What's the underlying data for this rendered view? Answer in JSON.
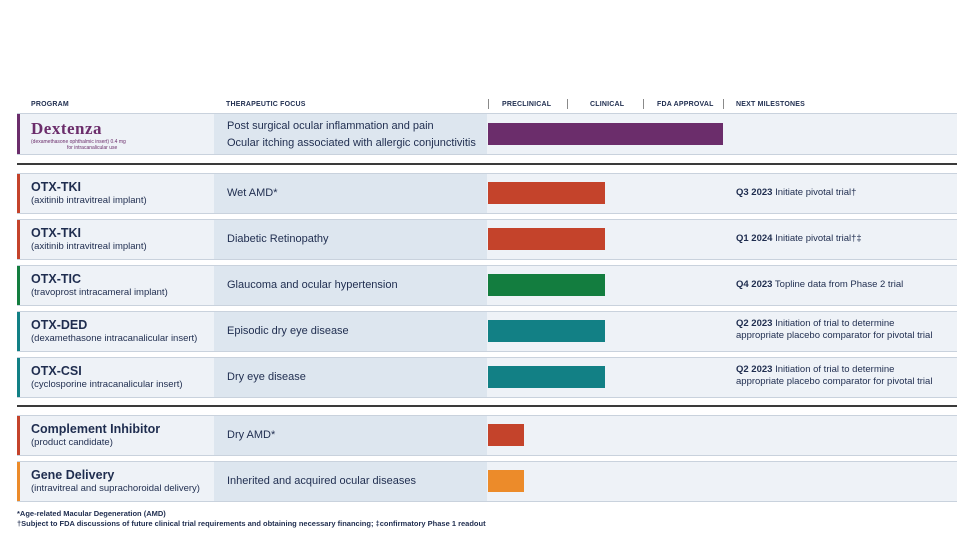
{
  "header": {
    "program": "PROGRAM",
    "focus": "THERAPEUTIC FOCUS",
    "preclinical": "PRECLINICAL",
    "clinical": "CLINICAL",
    "fda": "FDA APPROVAL",
    "milestones": "NEXT MILESTONES"
  },
  "dextenza": {
    "logo_word": "Dextenza",
    "logo_sub1": "(dexamethasone ophthalmic insert) 0.4 mg",
    "logo_sub2": "for intracanalicular use",
    "focus1": "Post surgical ocular inflammation and pain",
    "focus2": "Ocular itching associated with allergic conjunctivitis",
    "stage_fraction": 1.0,
    "color": "#6b2d6b"
  },
  "rows": [
    {
      "name": "OTX-TKI",
      "sub": "(axitinib intravitreal implant)",
      "focus": "Wet AMD*",
      "ms_bold": "Q3 2023",
      "ms_text": " Initiate pivotal trial†",
      "ms_line2": "",
      "color": "#c4432b"
    },
    {
      "name": "OTX-TKI",
      "sub": "(axitinib intravitreal implant)",
      "focus": "Diabetic Retinopathy",
      "ms_bold": "Q1 2024",
      "ms_text": " Initiate pivotal trial†‡",
      "ms_line2": "",
      "color": "#c4432b"
    },
    {
      "name": "OTX-TIC",
      "sub": "(travoprost intracameral implant)",
      "focus": "Glaucoma and ocular hypertension",
      "ms_bold": "Q4 2023",
      "ms_text": " Topline data from Phase 2 trial",
      "ms_line2": "",
      "color": "#137d3f"
    },
    {
      "name": "OTX-DED",
      "sub": "(dexamethasone intracanalicular insert)",
      "focus": "Episodic dry eye disease",
      "ms_bold": "Q2 2023",
      "ms_text": " Initiation of trial to determine",
      "ms_line2": "appropriate placebo comparator for pivotal trial",
      "color": "#128085"
    },
    {
      "name": "OTX-CSI",
      "sub": "(cyclosporine intracanalicular insert)",
      "focus": "Dry eye disease",
      "ms_bold": "Q2 2023",
      "ms_text": " Initiation of trial to determine",
      "ms_line2": "appropriate placebo comparator for pivotal trial",
      "color": "#128085"
    }
  ],
  "early": [
    {
      "name": "Complement Inhibitor",
      "sub": "(product candidate)",
      "focus": "Dry AMD*",
      "color": "#c4432b"
    },
    {
      "name": "Gene Delivery",
      "sub": "(intravitreal and suprachoroidal delivery)",
      "focus": "Inherited and acquired ocular diseases",
      "color": "#ec8b2a"
    }
  ],
  "footnotes": {
    "line1": "*Age-related Macular Degeneration (AMD)",
    "line2": "†Subject to FDA discussions of future clinical trial requirements and obtaining necessary financing; ‡confirmatory Phase 1 readout"
  }
}
